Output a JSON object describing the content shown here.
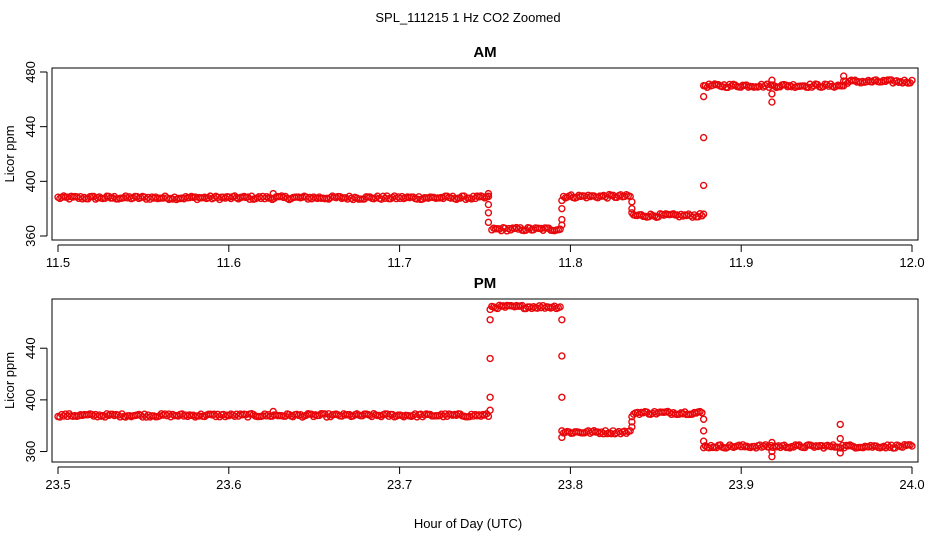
{
  "figure": {
    "title": "SPL_111215  1 Hz CO2 Zoomed",
    "xlabel": "Hour of Day (UTC)"
  },
  "colors": {
    "points": "#e8070b",
    "axes": "#000000"
  },
  "chart_data": [
    {
      "type": "scatter",
      "title": "AM",
      "xlabel": "Hour of Day (UTC)",
      "ylabel": "Licor ppm",
      "xlim": [
        11.5,
        12.0
      ],
      "ylim": [
        360,
        480
      ],
      "x_ticks": [
        "11.5",
        "11.6",
        "11.7",
        "11.8",
        "11.9",
        "12.0"
      ],
      "y_ticks": [
        "360",
        "400",
        "440",
        "480"
      ],
      "grid": false,
      "series": [
        {
          "marker": "open-circle",
          "segments": [
            {
              "x": [
                11.5,
                11.752
              ],
              "y": 388
            },
            {
              "x": [
                11.754,
                11.794
              ],
              "y": 365
            },
            {
              "x": [
                11.796,
                11.835
              ],
              "y": 389
            },
            {
              "x": [
                11.837,
                11.877
              ],
              "y": 375
            },
            {
              "x": [
                11.879,
                11.96
              ],
              "y": 470
            },
            {
              "x": [
                11.96,
                12.0
              ],
              "y": 473
            }
          ],
          "transitions": [
            {
              "x": 11.752,
              "y": [
                391,
                389,
                383,
                377,
                370
              ]
            },
            {
              "x": 11.795,
              "y": [
                368,
                372,
                380,
                386
              ]
            },
            {
              "x": 11.836,
              "y": [
                385,
                380,
                377
              ]
            },
            {
              "x": 11.878,
              "y": [
                376,
                397,
                432,
                462,
                470
              ]
            }
          ],
          "outliers": [
            {
              "x": 11.918,
              "y": 458
            },
            {
              "x": 11.918,
              "y": 464
            },
            {
              "x": 11.918,
              "y": 474
            },
            {
              "x": 11.96,
              "y": 477
            },
            {
              "x": 11.626,
              "y": 391
            }
          ]
        }
      ]
    },
    {
      "type": "scatter",
      "title": "PM",
      "xlabel": "Hour of Day (UTC)",
      "ylabel": "Licor ppm",
      "xlim": [
        23.5,
        24.0
      ],
      "ylim": [
        355,
        475
      ],
      "x_ticks": [
        "23.5",
        "23.6",
        "23.7",
        "23.8",
        "23.9",
        "24.0"
      ],
      "y_ticks": [
        "360",
        "400",
        "440"
      ],
      "grid": false,
      "series": [
        {
          "marker": "open-circle",
          "segments": [
            {
              "x": [
                23.5,
                23.752
              ],
              "y": 388
            },
            {
              "x": [
                23.754,
                23.794
              ],
              "y": 472
            },
            {
              "x": [
                23.796,
                23.835
              ],
              "y": 375
            },
            {
              "x": [
                23.837,
                23.877
              ],
              "y": 390
            },
            {
              "x": [
                23.879,
                24.0
              ],
              "y": 364
            }
          ],
          "transitions": [
            {
              "x": 23.753,
              "y": [
                392,
                402,
                432,
                462,
                470
              ]
            },
            {
              "x": 23.795,
              "y": [
                462,
                434,
                402,
                376,
                371
              ]
            },
            {
              "x": 23.836,
              "y": [
                379,
                383,
                387
              ]
            },
            {
              "x": 23.878,
              "y": [
                385,
                376,
                368,
                363
              ]
            }
          ],
          "outliers": [
            {
              "x": 23.918,
              "y": 356
            },
            {
              "x": 23.918,
              "y": 360
            },
            {
              "x": 23.918,
              "y": 367
            },
            {
              "x": 23.958,
              "y": 359
            },
            {
              "x": 23.958,
              "y": 370
            },
            {
              "x": 23.958,
              "y": 381
            },
            {
              "x": 23.626,
              "y": 391
            }
          ]
        }
      ]
    }
  ]
}
